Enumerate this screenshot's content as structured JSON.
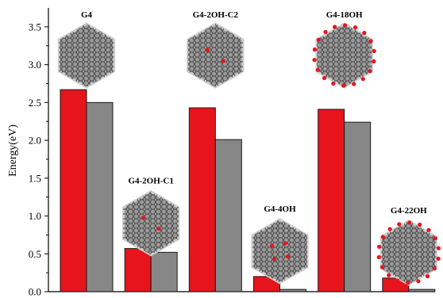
{
  "chart_data": {
    "type": "bar",
    "categories": [
      "G4",
      "G4-2OH-C1",
      "G4-2OH-C2",
      "G4-4OH",
      "G4-18OH",
      "G4-22OH"
    ],
    "series": [
      {
        "values": [
          2.67,
          0.57,
          2.43,
          0.2,
          2.41,
          0.18
        ],
        "color": "#e8141c"
      },
      {
        "values": [
          2.5,
          0.52,
          2.01,
          0.03,
          2.24,
          0.03
        ],
        "color": "#878787"
      }
    ],
    "ylabel": "Energy(eV)",
    "ylim": [
      0,
      3.75
    ],
    "yticks": [
      0.0,
      0.5,
      1.0,
      1.5,
      2.0,
      2.5,
      3.0,
      3.5
    ],
    "grid": false,
    "legend": "none",
    "annotation_icons": [
      "graphene-flake-icon",
      "graphene-flake-hydroxyl-icon"
    ]
  }
}
